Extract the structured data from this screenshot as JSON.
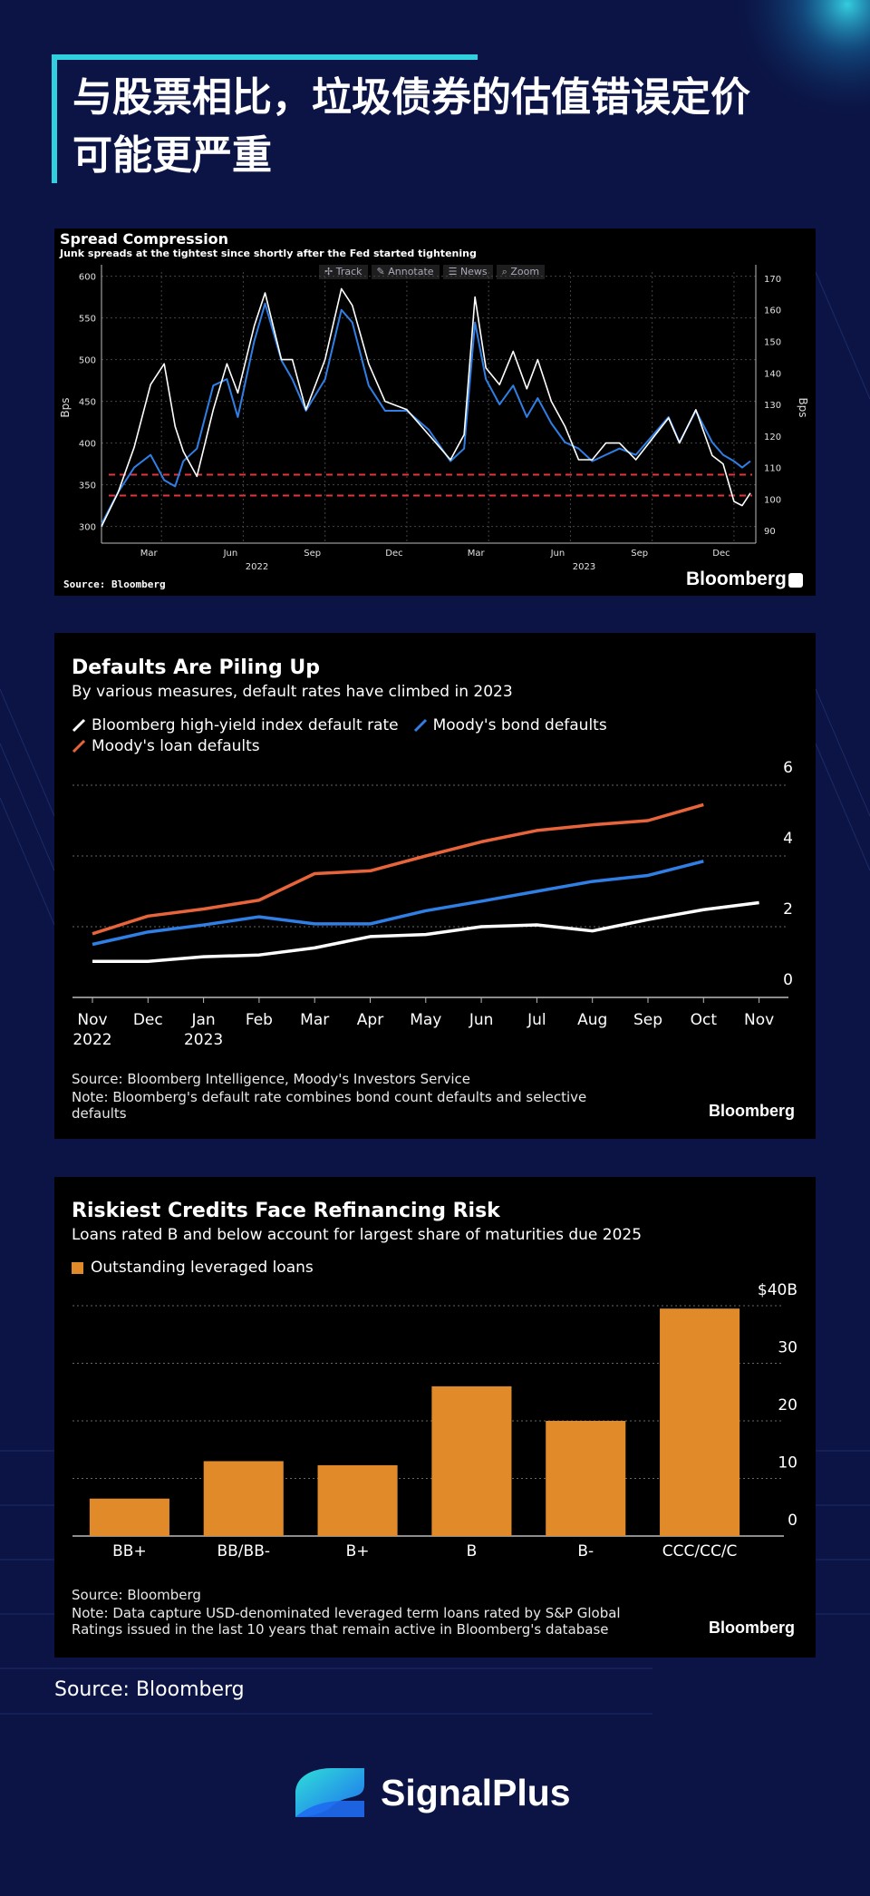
{
  "page": {
    "title_line1": "与股票相比，垃圾债券的估值错误定价",
    "title_line2": "可能更严重",
    "source": "Source: Bloomberg",
    "logo_text": "SignalPlus",
    "colors": {
      "background": "#0b1445",
      "accent": "#2fd1e0",
      "panel": "#000000"
    }
  },
  "toolbar": [
    "Track",
    "Annotate",
    "News",
    "Zoom"
  ],
  "chart_data": [
    {
      "type": "line",
      "title": "Spread Compression",
      "subtitle": "Junk spreads at the tightest since shortly after the Fed started tightening",
      "ylabel_left": "Bps",
      "ylabel_right": "Bps",
      "yticks_left": [
        300,
        350,
        400,
        450,
        500,
        550,
        600
      ],
      "yticks_right": [
        90,
        100,
        110,
        120,
        130,
        140,
        150,
        160,
        170
      ],
      "ylim_left": [
        280,
        605
      ],
      "ylim_right": [
        86,
        172
      ],
      "xtick_labels": [
        "Mar",
        "Jun",
        "Sep",
        "Dec",
        "Mar",
        "Jun",
        "Sep",
        "Dec"
      ],
      "xtick_pos": [
        2.2,
        5.2,
        8.2,
        11.2,
        14.2,
        17.2,
        20.2,
        23.2
      ],
      "year_labels": [
        {
          "label": "2022",
          "x": 5.7
        },
        {
          "label": "2023",
          "x": 17.7
        }
      ],
      "xlim": [
        0,
        24
      ],
      "series": [
        {
          "name": "White series (left axis)",
          "color": "#ffffff",
          "x": [
            0,
            0.6,
            1.2,
            1.8,
            2.3,
            2.7,
            3.0,
            3.5,
            4.1,
            4.6,
            5.0,
            5.6,
            6.0,
            6.6,
            7.0,
            7.5,
            8.2,
            8.8,
            9.2,
            9.8,
            10.4,
            11.2,
            12.0,
            12.8,
            13.3,
            13.7,
            14.1,
            14.6,
            15.1,
            15.6,
            16.0,
            16.5,
            17.0,
            17.5,
            18.0,
            18.5,
            19.0,
            19.6,
            20.2,
            20.8,
            21.2,
            21.8,
            22.4,
            22.8,
            23.2,
            23.5,
            23.8
          ],
          "values": [
            300,
            340,
            395,
            470,
            495,
            420,
            390,
            360,
            440,
            495,
            460,
            540,
            580,
            500,
            500,
            440,
            500,
            585,
            565,
            495,
            450,
            440,
            410,
            380,
            410,
            575,
            490,
            470,
            510,
            465,
            500,
            450,
            420,
            380,
            380,
            400,
            400,
            380,
            405,
            430,
            400,
            440,
            385,
            375,
            330,
            325,
            340
          ]
        },
        {
          "name": "Blue series (right axis)",
          "color": "#2f7fe5",
          "x": [
            0,
            0.6,
            1.2,
            1.8,
            2.3,
            2.7,
            3.0,
            3.5,
            4.1,
            4.6,
            5.0,
            5.6,
            6.0,
            6.6,
            7.0,
            7.5,
            8.2,
            8.8,
            9.2,
            9.8,
            10.4,
            11.2,
            12.0,
            12.8,
            13.3,
            13.7,
            14.1,
            14.6,
            15.1,
            15.6,
            16.0,
            16.5,
            17.0,
            17.5,
            18.0,
            18.5,
            19.0,
            19.6,
            20.2,
            20.8,
            21.2,
            21.8,
            22.4,
            22.8,
            23.2,
            23.5,
            23.8
          ],
          "values": [
            92,
            102,
            110,
            114,
            106,
            104,
            112,
            116,
            136,
            138,
            126,
            150,
            162,
            144,
            138,
            128,
            138,
            160,
            156,
            136,
            128,
            128,
            122,
            112,
            116,
            156,
            138,
            130,
            136,
            126,
            132,
            124,
            118,
            116,
            112,
            114,
            116,
            114,
            120,
            126,
            118,
            128,
            118,
            114,
            112,
            110,
            112
          ]
        }
      ],
      "reference_lines_left": [
        362,
        337
      ],
      "source": "Source: Bloomberg",
      "brand": "Bloomberg"
    },
    {
      "type": "line",
      "title": "Defaults Are Piling Up",
      "subtitle": "By various measures, default rates have climbed in 2023",
      "categories": [
        "Nov",
        "Dec",
        "Jan",
        "Feb",
        "Mar",
        "Apr",
        "May",
        "Jun",
        "Jul",
        "Aug",
        "Sep",
        "Oct",
        "Nov"
      ],
      "category_years": [
        "2022",
        "",
        "2023",
        "",
        "",
        "",
        "",
        "",
        "",
        "",
        "",
        "",
        ""
      ],
      "ylim": [
        0,
        6
      ],
      "yticks": [
        0,
        2,
        4,
        6
      ],
      "series": [
        {
          "name": "Bloomberg high-yield index default rate",
          "color": "#ffffff",
          "values": [
            1.02,
            1.02,
            1.15,
            1.2,
            1.4,
            1.72,
            1.78,
            2.0,
            2.05,
            1.88,
            2.2,
            2.48,
            2.68
          ]
        },
        {
          "name": "Moody's bond defaults",
          "color": "#2f7fe5",
          "values": [
            1.5,
            1.85,
            2.05,
            2.28,
            2.08,
            2.08,
            2.45,
            2.72,
            3.0,
            3.28,
            3.45,
            3.85,
            null
          ]
        },
        {
          "name": "Moody's loan defaults",
          "color": "#e8643a",
          "values": [
            1.8,
            2.3,
            2.5,
            2.75,
            3.5,
            3.58,
            4.0,
            4.4,
            4.72,
            4.88,
            5.0,
            5.45,
            null
          ]
        }
      ],
      "source": "Source: Bloomberg Intelligence, Moody's Investors Service",
      "note": "Note: Bloomberg's default rate combines bond count defaults and selective defaults",
      "brand": "Bloomberg"
    },
    {
      "type": "bar",
      "title": "Riskiest Credits Face Refinancing Risk",
      "subtitle": "Loans rated B and below account for largest share of maturities due 2025",
      "legend": "Outstanding leveraged loans",
      "categories": [
        "BB+",
        "BB/BB-",
        "B+",
        "B",
        "B-",
        "CCC/CC/C"
      ],
      "values": [
        6.5,
        13,
        12.3,
        26,
        20,
        39.5
      ],
      "ylim": [
        0,
        40
      ],
      "yticks": [
        0,
        10,
        20,
        30,
        40
      ],
      "ytick_labels": [
        "0",
        "10",
        "20",
        "30",
        "$40B"
      ],
      "color": "#e08a2a",
      "source": "Source: Bloomberg",
      "note": "Note: Data capture USD-denominated leveraged term loans rated by S&P Global Ratings issued in the last 10 years that remain active in Bloomberg's database",
      "brand": "Bloomberg"
    }
  ]
}
